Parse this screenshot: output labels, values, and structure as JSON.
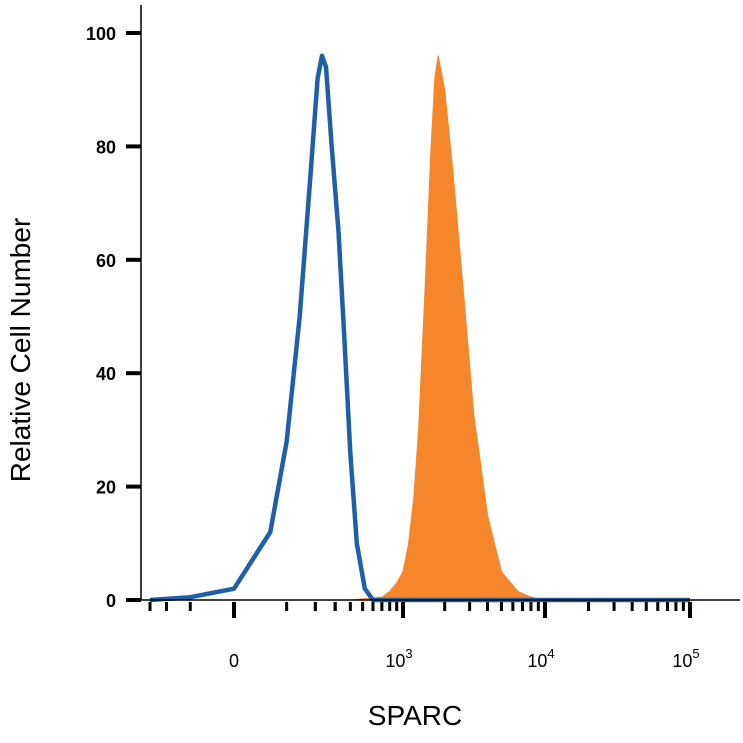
{
  "chart_data": {
    "type": "area",
    "xlabel": "SPARC",
    "ylabel": "Relative Cell Number",
    "x_scale": "biexponential",
    "ylim": [
      0,
      100
    ],
    "yticks": [
      0,
      20,
      40,
      60,
      80,
      100
    ],
    "xticks": [
      {
        "value": 0,
        "base": "0",
        "exp": ""
      },
      {
        "value": 1000,
        "base": "10",
        "exp": "3"
      },
      {
        "value": 10000,
        "base": "10",
        "exp": "4"
      },
      {
        "value": 100000,
        "base": "10",
        "exp": "5"
      }
    ],
    "grid": false,
    "legend": "none",
    "series": [
      {
        "style": "outline",
        "color": "#1f5fa8",
        "x": [
          -300,
          -100,
          0,
          60,
          100,
          140,
          180,
          210,
          230,
          250,
          280,
          320,
          360,
          400,
          450,
          520,
          600,
          800,
          3000,
          100000
        ],
        "y": [
          0,
          0.5,
          2,
          12,
          28,
          50,
          75,
          92,
          96,
          94,
          80,
          65,
          45,
          26,
          10,
          2,
          0,
          0,
          0,
          0
        ]
      },
      {
        "style": "filled",
        "color": "#f5862a",
        "x": [
          -300,
          400,
          700,
          800,
          900,
          1000,
          1100,
          1200,
          1300,
          1450,
          1600,
          1700,
          1800,
          2000,
          2300,
          2700,
          3200,
          4000,
          5000,
          6500,
          8000,
          10000,
          100000
        ],
        "y": [
          0,
          0,
          0.5,
          1.5,
          3,
          5,
          10,
          18,
          30,
          55,
          80,
          92,
          96,
          90,
          75,
          55,
          33,
          15,
          5,
          1.5,
          0.5,
          0,
          0
        ]
      }
    ]
  }
}
